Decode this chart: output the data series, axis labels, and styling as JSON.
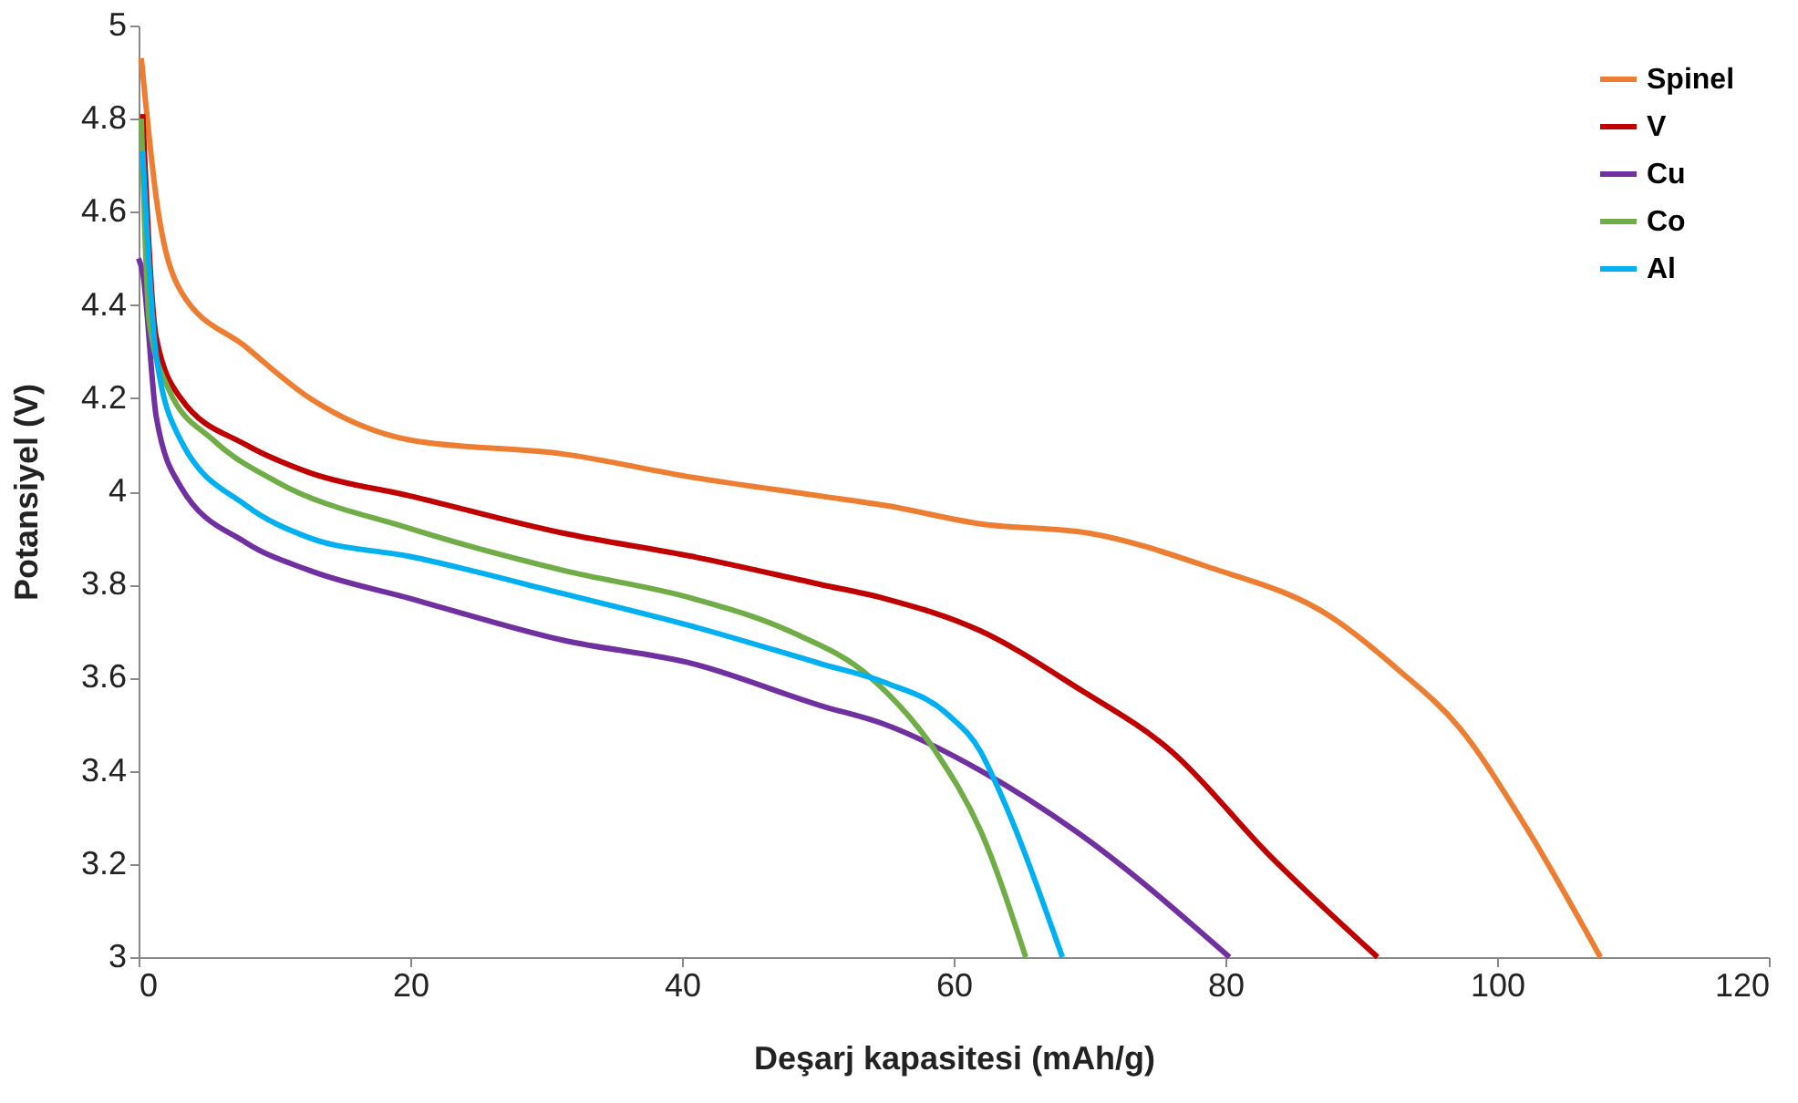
{
  "chart_data": {
    "type": "line",
    "xlabel": "Deşarj kapasitesi (mAh/g)",
    "ylabel": "Potansiyel (V)",
    "xlim": [
      0,
      120
    ],
    "xticks": [
      0,
      20,
      40,
      60,
      80,
      100,
      120
    ],
    "ylim": [
      3,
      5
    ],
    "yticks": [
      3,
      3.2,
      3.4,
      3.6,
      3.8,
      4,
      4.2,
      4.4,
      4.6,
      4.8,
      5
    ],
    "grid": false,
    "legend": "top right",
    "marker": "none",
    "line_style": "solid",
    "series": [
      {
        "name": "Spinel",
        "color": "#ed7d31",
        "x": [
          0.2,
          0.3,
          1.3,
          3.1,
          7.9,
          12.6,
          20,
          31.3,
          40.8,
          50.2,
          54.9,
          62,
          70,
          78.5,
          87.8,
          92.6,
          97.3,
          101.9,
          107.6
        ],
        "values": [
          4.93,
          4.9,
          4.63,
          4.43,
          4.31,
          4.2,
          4.11,
          4.08,
          4.03,
          3.99,
          3.97,
          3.93,
          3.91,
          3.84,
          3.73,
          3.62,
          3.49,
          3.29,
          3
        ]
      },
      {
        "name": "V",
        "color": "#c00000",
        "x": [
          0.3,
          1.3,
          3.1,
          7.9,
          12.6,
          20,
          31.3,
          40.8,
          50.2,
          54.9,
          62,
          69,
          76.1,
          83.2,
          91.2
        ],
        "values": [
          4.81,
          4.33,
          4.2,
          4.1,
          4.04,
          3.99,
          3.91,
          3.86,
          3.8,
          3.77,
          3.7,
          3.58,
          3.44,
          3.22,
          3
        ]
      },
      {
        "name": "Cu",
        "color": "#7030a0",
        "x": [
          0,
          0.3,
          1.3,
          3.1,
          7.9,
          12.6,
          20,
          31.3,
          40.8,
          50.2,
          54.9,
          62,
          69,
          80.3
        ],
        "values": [
          4.5,
          4.47,
          4.16,
          4.01,
          3.89,
          3.83,
          3.77,
          3.68,
          3.63,
          3.54,
          3.5,
          3.4,
          3.27,
          3
        ]
      },
      {
        "name": "Co",
        "color": "#70ad47",
        "x": [
          0.2,
          0.8,
          2.2,
          5.5,
          10.2,
          20,
          31.3,
          40.8,
          47.9,
          53.9,
          58.7,
          62,
          65.3
        ],
        "values": [
          4.8,
          4.36,
          4.22,
          4.11,
          4.02,
          3.92,
          3.83,
          3.77,
          3.7,
          3.6,
          3.44,
          3.27,
          3
        ]
      },
      {
        "name": "Al",
        "color": "#00b0f0",
        "x": [
          0.3,
          1.3,
          3.1,
          7.9,
          12.6,
          20,
          31.3,
          40.8,
          50.2,
          54.9,
          59.6,
          62,
          63,
          68
        ],
        "values": [
          4.73,
          4.29,
          4.11,
          3.97,
          3.9,
          3.86,
          3.78,
          3.71,
          3.63,
          3.59,
          3.52,
          3.44,
          3.38,
          3
        ]
      }
    ]
  }
}
